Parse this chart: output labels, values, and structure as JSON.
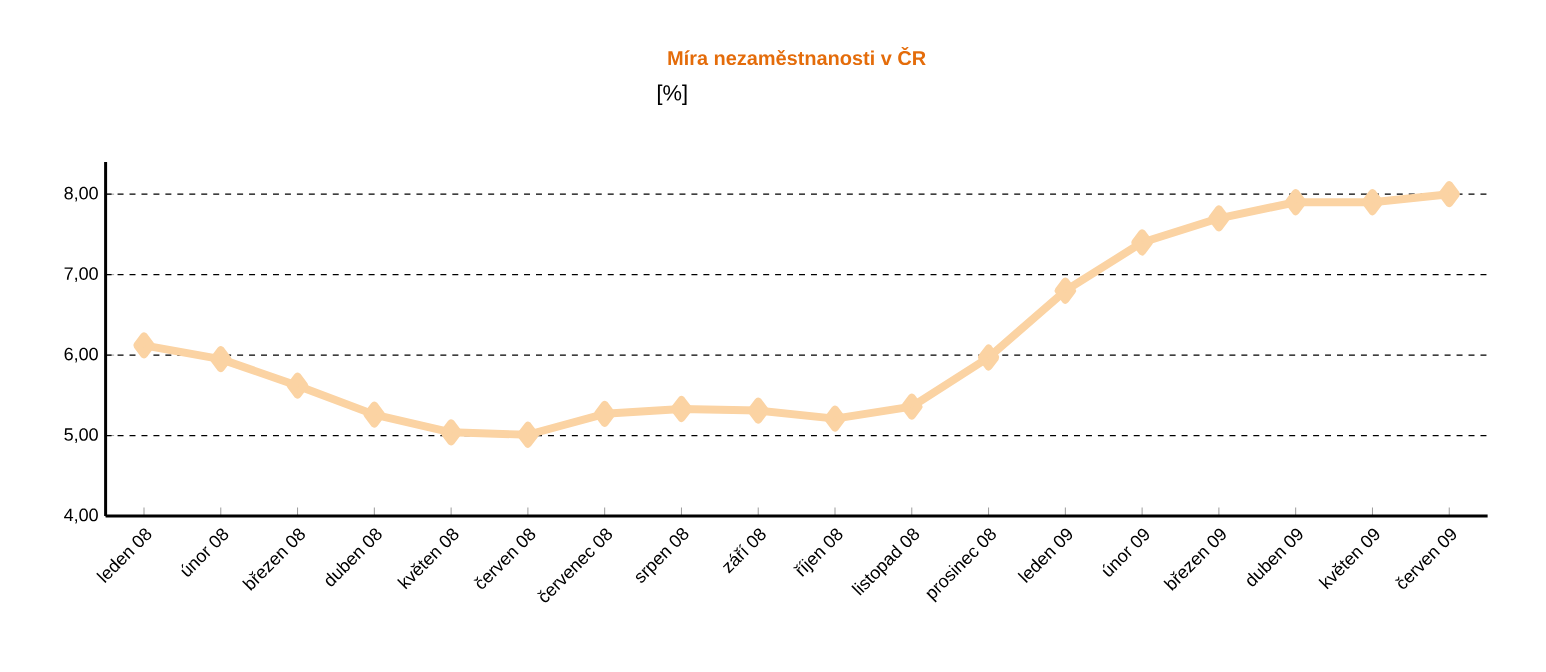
{
  "chart_data": {
    "type": "line",
    "title": "Míra nezaměstnanosti  v ČR",
    "ylabel": "[%]",
    "categories": [
      "leden 08",
      "únor 08",
      "březen 08",
      "duben 08",
      "květen 08",
      "červen 08",
      "červenec 08",
      "srpen 08",
      "září 08",
      "říjen 08",
      "listopad 08",
      "prosinec 08",
      "leden 09",
      "únor 09",
      "březen 09",
      "duben 09",
      "květen 09",
      "červen 09"
    ],
    "series": [
      {
        "color": "#fbd3a3",
        "values": [
          6.12,
          5.95,
          5.62,
          5.26,
          5.04,
          5.01,
          5.27,
          5.33,
          5.31,
          5.21,
          5.36,
          5.97,
          6.8,
          7.4,
          7.7,
          7.9,
          7.9,
          8.0
        ]
      }
    ],
    "ylim": [
      4,
      8.4
    ],
    "yticks": [
      {
        "value": 4,
        "label": "4,00"
      },
      {
        "value": 5,
        "label": "5,00"
      },
      {
        "value": 6,
        "label": "6,00"
      },
      {
        "value": 7,
        "label": "7,00"
      },
      {
        "value": 8,
        "label": "8,00"
      }
    ],
    "grid": "y",
    "marker": "diamond",
    "line_style": "solid"
  }
}
